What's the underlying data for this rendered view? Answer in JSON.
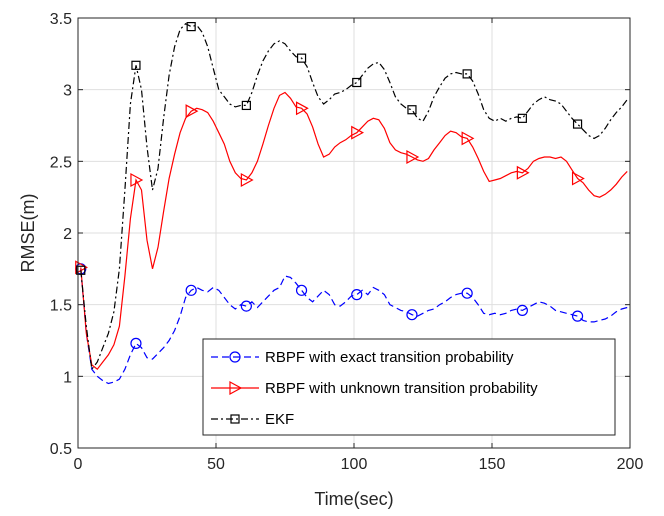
{
  "chart_data": {
    "type": "line",
    "title": "",
    "xlabel": "Time(sec)",
    "ylabel": "RMSE(m)",
    "xlim": [
      0,
      200
    ],
    "ylim": [
      0.5,
      3.5
    ],
    "xticks": [
      0,
      50,
      100,
      150,
      200
    ],
    "yticks": [
      0.5,
      1,
      1.5,
      2,
      2.5,
      3,
      3.5
    ],
    "xtick_labels": [
      "0",
      "50",
      "100",
      "150",
      "200"
    ],
    "ytick_labels": [
      "0.5",
      "1",
      "1.5",
      "2",
      "2.5",
      "3",
      "3.5"
    ],
    "grid": true,
    "legend_position": "bottom-right",
    "series": [
      {
        "name": "RBPF with exact transition probability",
        "color": "#0000ff",
        "line_style": "dashed",
        "marker": "circle",
        "x": [
          1,
          3,
          5,
          7,
          9,
          11,
          13,
          15,
          17,
          19,
          21,
          23,
          25,
          27,
          29,
          31,
          33,
          35,
          37,
          39,
          41,
          43,
          45,
          47,
          49,
          51,
          53,
          55,
          57,
          59,
          61,
          63,
          65,
          67,
          69,
          71,
          73,
          75,
          77,
          79,
          81,
          83,
          85,
          87,
          89,
          91,
          93,
          95,
          97,
          99,
          101,
          103,
          105,
          107,
          109,
          111,
          113,
          115,
          117,
          119,
          121,
          123,
          125,
          127,
          129,
          131,
          133,
          135,
          137,
          139,
          141,
          143,
          145,
          147,
          149,
          151,
          153,
          155,
          157,
          159,
          161,
          163,
          165,
          167,
          169,
          171,
          173,
          175,
          177,
          179,
          181,
          183,
          185,
          187,
          189,
          191,
          193,
          195,
          197,
          199
        ],
        "values": [
          1.75,
          1.3,
          1.05,
          1.0,
          0.97,
          0.95,
          0.96,
          0.98,
          1.05,
          1.15,
          1.23,
          1.2,
          1.13,
          1.12,
          1.16,
          1.2,
          1.25,
          1.32,
          1.42,
          1.55,
          1.6,
          1.62,
          1.6,
          1.59,
          1.62,
          1.6,
          1.55,
          1.5,
          1.47,
          1.5,
          1.49,
          1.52,
          1.48,
          1.52,
          1.56,
          1.6,
          1.62,
          1.7,
          1.69,
          1.65,
          1.6,
          1.55,
          1.52,
          1.56,
          1.6,
          1.57,
          1.5,
          1.49,
          1.52,
          1.56,
          1.57,
          1.6,
          1.57,
          1.62,
          1.6,
          1.57,
          1.5,
          1.48,
          1.46,
          1.45,
          1.43,
          1.42,
          1.44,
          1.46,
          1.47,
          1.5,
          1.52,
          1.55,
          1.57,
          1.58,
          1.58,
          1.55,
          1.5,
          1.44,
          1.43,
          1.44,
          1.43,
          1.44,
          1.46,
          1.47,
          1.46,
          1.48,
          1.5,
          1.52,
          1.51,
          1.49,
          1.46,
          1.45,
          1.44,
          1.43,
          1.42,
          1.39,
          1.38,
          1.38,
          1.39,
          1.4,
          1.42,
          1.45,
          1.47,
          1.48
        ],
        "marker_x": [
          1,
          21,
          41,
          61,
          81,
          101,
          121,
          141,
          161,
          181
        ]
      },
      {
        "name": "RBPF with unknown transition probability",
        "color": "#ff0000",
        "line_style": "solid",
        "marker": "triangle-right",
        "x": [
          1,
          3,
          5,
          7,
          9,
          11,
          13,
          15,
          17,
          19,
          21,
          23,
          25,
          27,
          29,
          31,
          33,
          35,
          37,
          39,
          41,
          43,
          45,
          47,
          49,
          51,
          53,
          55,
          57,
          59,
          61,
          63,
          65,
          67,
          69,
          71,
          73,
          75,
          77,
          79,
          81,
          83,
          85,
          87,
          89,
          91,
          93,
          95,
          97,
          99,
          101,
          103,
          105,
          107,
          109,
          111,
          113,
          115,
          117,
          119,
          121,
          123,
          125,
          127,
          129,
          131,
          133,
          135,
          137,
          139,
          141,
          143,
          145,
          147,
          149,
          151,
          153,
          155,
          157,
          159,
          161,
          163,
          165,
          167,
          169,
          171,
          173,
          175,
          177,
          179,
          181,
          183,
          185,
          187,
          189,
          191,
          193,
          195,
          197,
          199
        ],
        "values": [
          1.76,
          1.3,
          1.08,
          1.05,
          1.1,
          1.15,
          1.22,
          1.35,
          1.7,
          2.1,
          2.37,
          2.3,
          1.95,
          1.75,
          1.9,
          2.15,
          2.38,
          2.55,
          2.7,
          2.8,
          2.85,
          2.87,
          2.86,
          2.84,
          2.78,
          2.7,
          2.62,
          2.5,
          2.42,
          2.38,
          2.37,
          2.42,
          2.5,
          2.62,
          2.75,
          2.87,
          2.96,
          2.98,
          2.94,
          2.88,
          2.87,
          2.83,
          2.74,
          2.62,
          2.53,
          2.55,
          2.6,
          2.63,
          2.65,
          2.68,
          2.7,
          2.74,
          2.78,
          2.8,
          2.79,
          2.73,
          2.63,
          2.58,
          2.56,
          2.55,
          2.53,
          2.51,
          2.5,
          2.52,
          2.58,
          2.63,
          2.68,
          2.71,
          2.7,
          2.67,
          2.66,
          2.6,
          2.52,
          2.43,
          2.36,
          2.37,
          2.38,
          2.4,
          2.42,
          2.43,
          2.42,
          2.45,
          2.5,
          2.52,
          2.53,
          2.53,
          2.52,
          2.53,
          2.5,
          2.44,
          2.38,
          2.35,
          2.3,
          2.26,
          2.25,
          2.27,
          2.3,
          2.34,
          2.39,
          2.43
        ],
        "marker_x": [
          1,
          21,
          41,
          61,
          81,
          101,
          121,
          141,
          161,
          181
        ]
      },
      {
        "name": "EKF",
        "color": "#000000",
        "line_style": "dash-dot",
        "marker": "square",
        "x": [
          1,
          3,
          5,
          7,
          9,
          11,
          13,
          15,
          17,
          19,
          21,
          23,
          25,
          27,
          29,
          31,
          33,
          35,
          37,
          39,
          41,
          43,
          45,
          47,
          49,
          51,
          53,
          55,
          57,
          59,
          61,
          63,
          65,
          67,
          69,
          71,
          73,
          75,
          77,
          79,
          81,
          83,
          85,
          87,
          89,
          91,
          93,
          95,
          97,
          99,
          101,
          103,
          105,
          107,
          109,
          111,
          113,
          115,
          117,
          119,
          121,
          123,
          125,
          127,
          129,
          131,
          133,
          135,
          137,
          139,
          141,
          143,
          145,
          147,
          149,
          151,
          153,
          155,
          157,
          159,
          161,
          163,
          165,
          167,
          169,
          171,
          173,
          175,
          177,
          179,
          181,
          183,
          185,
          187,
          189,
          191,
          193,
          195,
          197,
          199
        ],
        "values": [
          1.74,
          1.35,
          1.05,
          1.1,
          1.2,
          1.3,
          1.45,
          1.75,
          2.3,
          2.9,
          3.17,
          3.0,
          2.6,
          2.3,
          2.45,
          2.8,
          3.1,
          3.3,
          3.42,
          3.46,
          3.44,
          3.45,
          3.4,
          3.3,
          3.15,
          3.0,
          2.95,
          2.9,
          2.88,
          2.89,
          2.89,
          2.98,
          3.1,
          3.2,
          3.27,
          3.32,
          3.34,
          3.32,
          3.27,
          3.23,
          3.22,
          3.16,
          3.05,
          2.95,
          2.9,
          2.93,
          2.97,
          2.98,
          3.0,
          3.03,
          3.05,
          3.1,
          3.15,
          3.18,
          3.19,
          3.14,
          3.05,
          2.95,
          2.9,
          2.87,
          2.86,
          2.8,
          2.78,
          2.85,
          2.95,
          3.02,
          3.08,
          3.11,
          3.12,
          3.11,
          3.11,
          3.06,
          2.97,
          2.86,
          2.8,
          2.78,
          2.8,
          2.78,
          2.8,
          2.81,
          2.8,
          2.85,
          2.9,
          2.93,
          2.95,
          2.93,
          2.92,
          2.9,
          2.85,
          2.8,
          2.76,
          2.72,
          2.68,
          2.66,
          2.68,
          2.73,
          2.79,
          2.84,
          2.88,
          2.93
        ],
        "marker_x": [
          1,
          21,
          41,
          61,
          81,
          101,
          121,
          141,
          161,
          181
        ]
      }
    ]
  }
}
